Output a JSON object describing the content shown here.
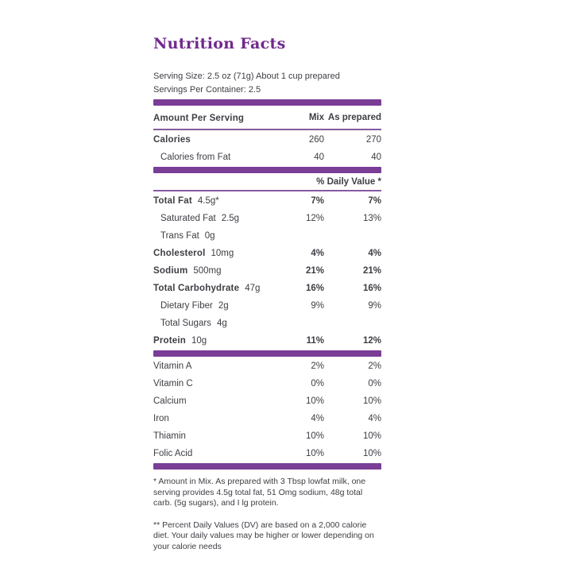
{
  "colors": {
    "accent_purple": "#7a3e97",
    "title_purple": "#71298d",
    "thin_rule_purple": "#875aa0",
    "text": "#3e3e44"
  },
  "title": "Nutrition Facts",
  "serving": {
    "size_line": "Serving Size: 2.5 oz (71g) About 1 cup prepared",
    "container_line": "Servings Per Container: 2.5"
  },
  "header": {
    "amount_label": "Amount Per Serving",
    "col_mix": "Mix",
    "col_prepared": "As prepared"
  },
  "daily_value_header": "% Daily Value *",
  "calories_rows": [
    {
      "label": "Calories",
      "amount": "",
      "mix": "260",
      "prepared": "270",
      "bold": true,
      "indent": false
    },
    {
      "label": "Calories from Fat",
      "amount": "",
      "mix": "40",
      "prepared": "40",
      "bold": false,
      "indent": true
    }
  ],
  "nutrient_rows": [
    {
      "label": "Total Fat",
      "amount": "4.5g*",
      "mix": "7%",
      "prepared": "7%",
      "bold": true,
      "indent": false
    },
    {
      "label": "Saturated Fat",
      "amount": "2.5g",
      "mix": "12%",
      "prepared": "13%",
      "bold": false,
      "indent": true
    },
    {
      "label": "Trans Fat",
      "amount": "0g",
      "mix": "",
      "prepared": "",
      "bold": false,
      "indent": true
    },
    {
      "label": "Cholesterol",
      "amount": "10mg",
      "mix": "4%",
      "prepared": "4%",
      "bold": true,
      "indent": false
    },
    {
      "label": "Sodium",
      "amount": "500mg",
      "mix": "21%",
      "prepared": "21%",
      "bold": true,
      "indent": false
    },
    {
      "label": "Total Carbohydrate",
      "amount": "47g",
      "mix": "16%",
      "prepared": "16%",
      "bold": true,
      "indent": false
    },
    {
      "label": "Dietary Fiber",
      "amount": "2g",
      "mix": "9%",
      "prepared": "9%",
      "bold": false,
      "indent": true
    },
    {
      "label": "Total Sugars",
      "amount": "4g",
      "mix": "",
      "prepared": "",
      "bold": false,
      "indent": true
    },
    {
      "label": "Protein",
      "amount": "10g",
      "mix": "11%",
      "prepared": "12%",
      "bold": true,
      "indent": false
    }
  ],
  "vitamin_rows": [
    {
      "label": "Vitamin A",
      "amount": "",
      "mix": "2%",
      "prepared": "2%",
      "bold": false,
      "indent": false
    },
    {
      "label": "Vitamin C",
      "amount": "",
      "mix": "0%",
      "prepared": "0%",
      "bold": false,
      "indent": false
    },
    {
      "label": "Calcium",
      "amount": "",
      "mix": "10%",
      "prepared": "10%",
      "bold": false,
      "indent": false
    },
    {
      "label": "Iron",
      "amount": "",
      "mix": "4%",
      "prepared": "4%",
      "bold": false,
      "indent": false
    },
    {
      "label": "Thiamin",
      "amount": "",
      "mix": "10%",
      "prepared": "10%",
      "bold": false,
      "indent": false
    },
    {
      "label": "Folic Acid",
      "amount": "",
      "mix": "10%",
      "prepared": "10%",
      "bold": false,
      "indent": false
    }
  ],
  "footnotes": [
    "* Amount in Mix. As prepared with 3 Tbsp lowfat milk, one serving provides 4.5g total fat, 51 Omg sodium, 48g total carb. (5g sugars), and I lg protein.",
    "** Percent Daily Values (DV) are based on a 2,000 calorie diet. Your daily values may be higher or lower depending on your calorie needs"
  ]
}
